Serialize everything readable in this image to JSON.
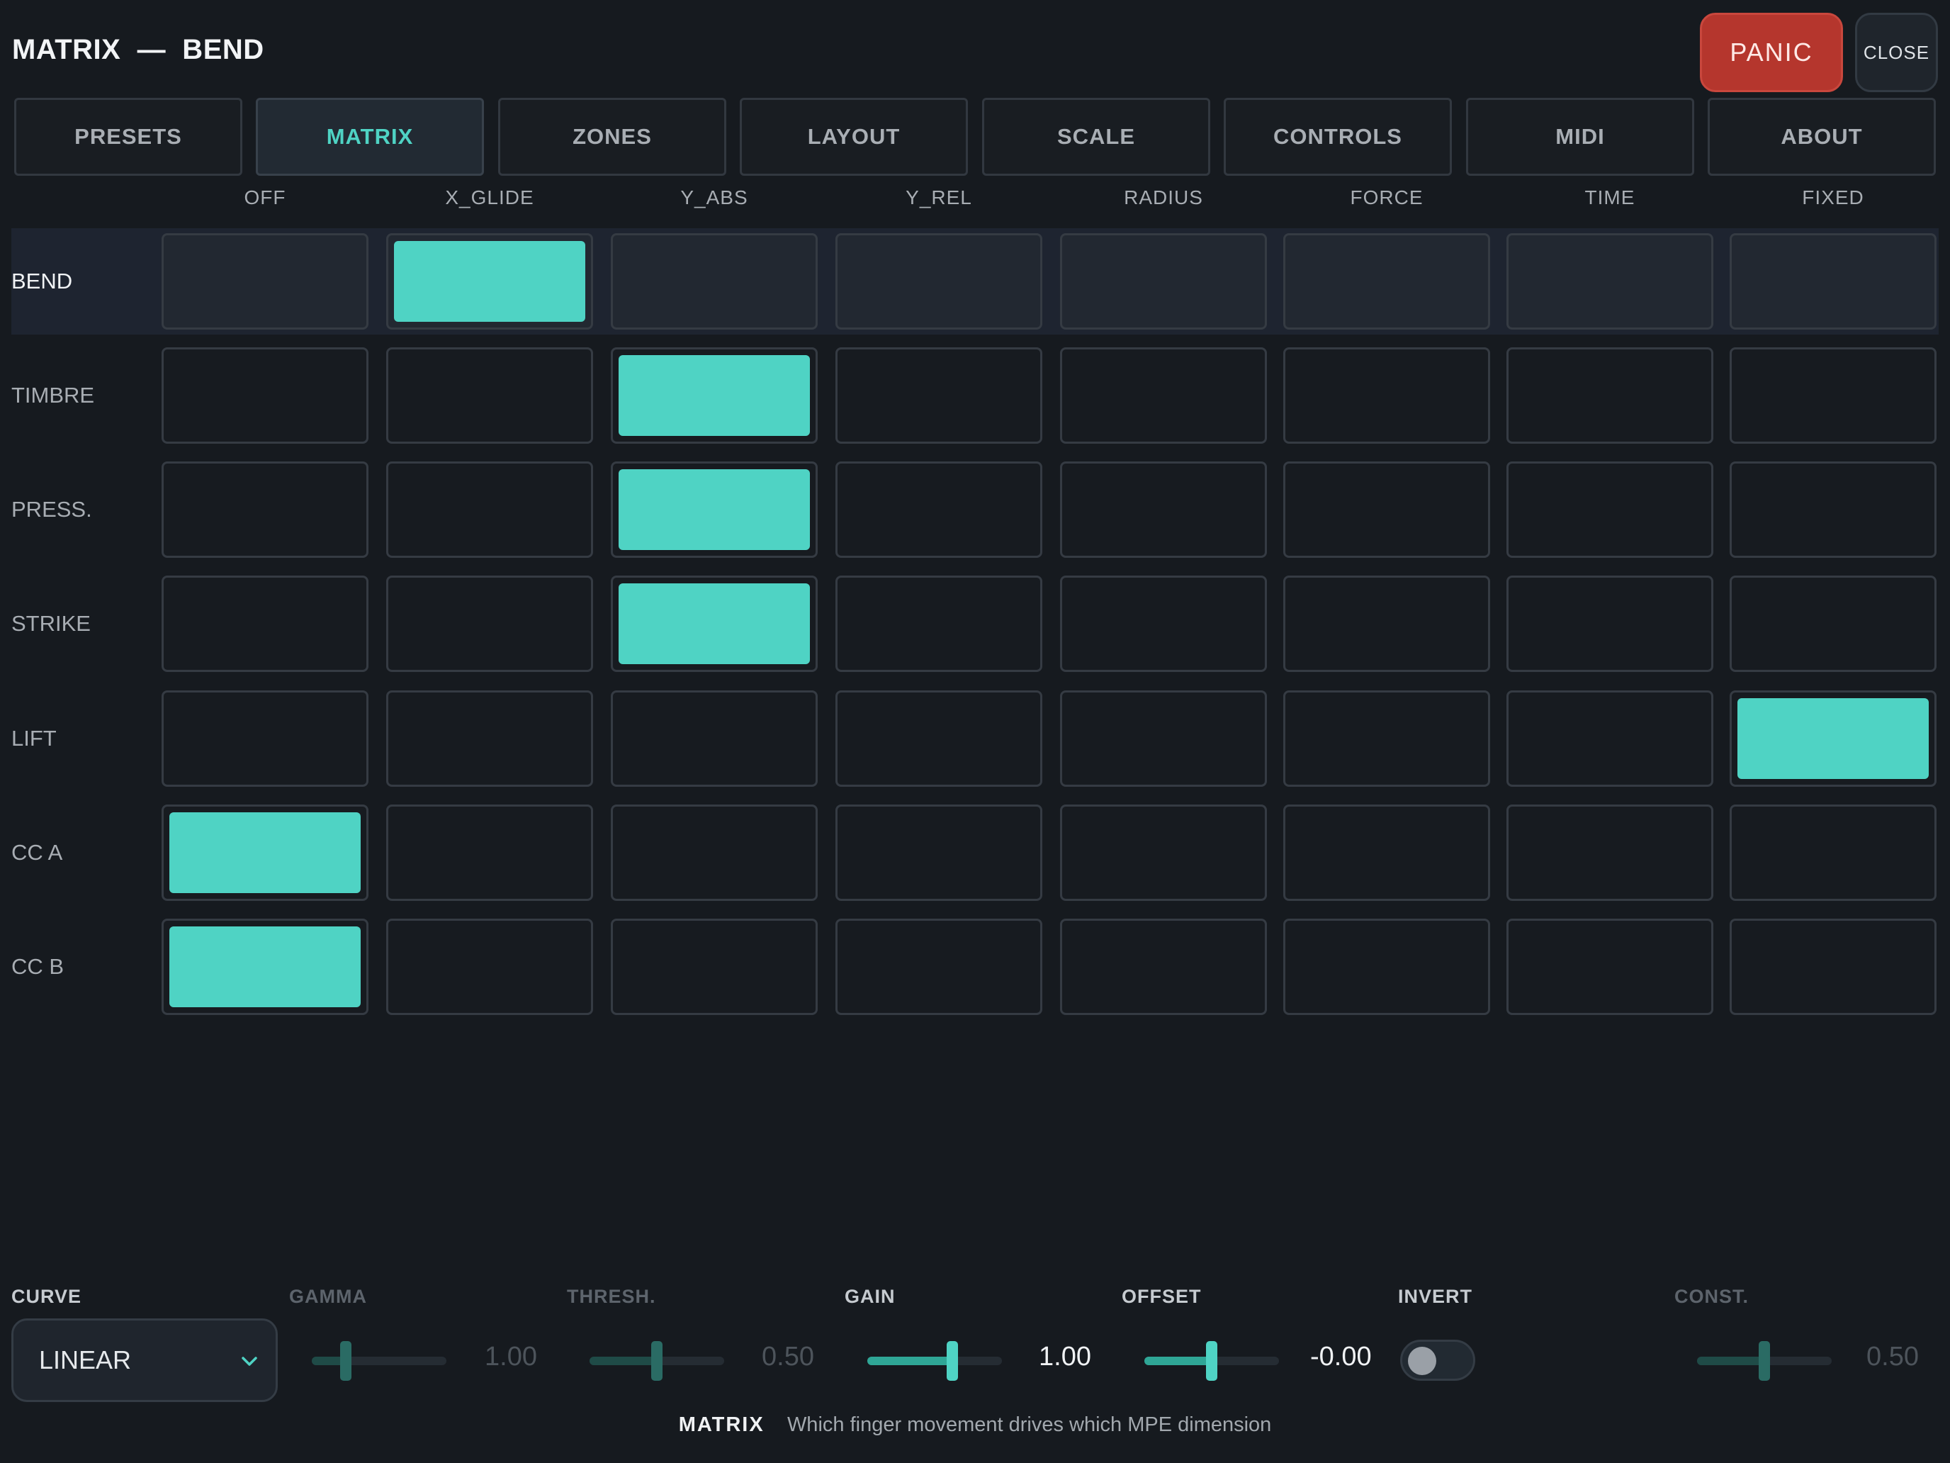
{
  "header": {
    "title": "MATRIX  —  BEND",
    "panic_label": "PANIC",
    "close_label": "CLOSE"
  },
  "tabs": [
    {
      "label": "PRESETS",
      "active": false
    },
    {
      "label": "MATRIX",
      "active": true
    },
    {
      "label": "ZONES",
      "active": false
    },
    {
      "label": "LAYOUT",
      "active": false
    },
    {
      "label": "SCALE",
      "active": false
    },
    {
      "label": "CONTROLS",
      "active": false
    },
    {
      "label": "MIDI",
      "active": false
    },
    {
      "label": "ABOUT",
      "active": false
    }
  ],
  "matrix": {
    "columns": [
      "OFF",
      "X_GLIDE",
      "Y_ABS",
      "Y_REL",
      "RADIUS",
      "FORCE",
      "TIME",
      "FIXED"
    ],
    "selected_row": "BEND",
    "rows": [
      {
        "label": "BEND",
        "active_source": "X_GLIDE"
      },
      {
        "label": "TIMBRE",
        "active_source": "Y_ABS"
      },
      {
        "label": "PRESS.",
        "active_source": "Y_ABS"
      },
      {
        "label": "STRIKE",
        "active_source": "Y_ABS"
      },
      {
        "label": "LIFT",
        "active_source": "FIXED"
      },
      {
        "label": "CC A",
        "active_source": "OFF"
      },
      {
        "label": "CC B",
        "active_source": "OFF"
      }
    ]
  },
  "controls": {
    "curve": {
      "label": "CURVE",
      "value": "LINEAR"
    },
    "gamma": {
      "label": "GAMMA",
      "value": "1.00",
      "level": 0.25,
      "enabled": false
    },
    "thresh": {
      "label": "THRESH.",
      "value": "0.50",
      "level": 0.5,
      "enabled": false
    },
    "gain": {
      "label": "GAIN",
      "value": "1.00",
      "level": 0.63,
      "enabled": true
    },
    "offset": {
      "label": "OFFSET",
      "value": "-0.00",
      "level": 0.5,
      "enabled": true
    },
    "invert": {
      "label": "INVERT",
      "on": false
    },
    "const": {
      "label": "CONST.",
      "value": "0.50",
      "level": 0.5,
      "enabled": false
    }
  },
  "footer": {
    "section": "MATRIX",
    "hint": "Which finger movement drives which MPE dimension"
  },
  "colors": {
    "accent": "#4fd3c4",
    "panic": "#b5362d",
    "background": "#161a1f"
  }
}
